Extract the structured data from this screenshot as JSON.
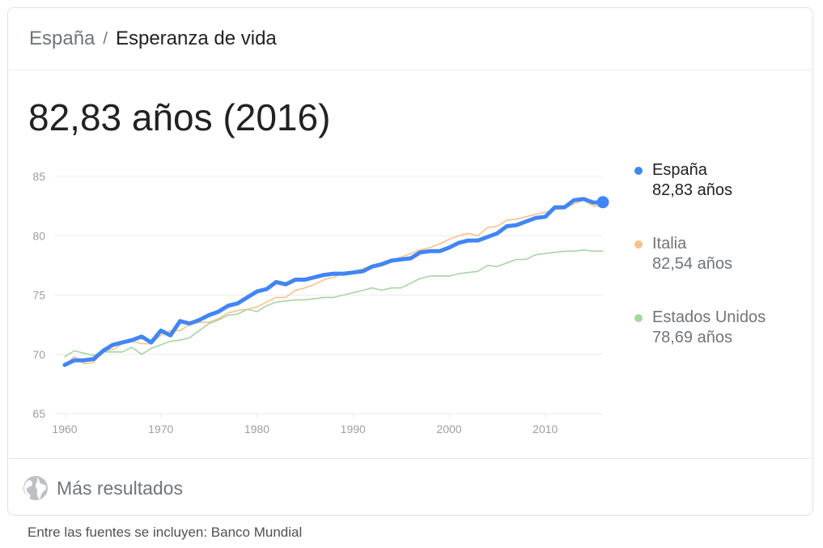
{
  "header": {
    "root": "España",
    "separator": "/",
    "current": "Esperanza de vida"
  },
  "headline": "82,83 años (2016)",
  "legend": [
    {
      "name": "España",
      "value": "82,83 años",
      "color": "#4285f4"
    },
    {
      "name": "Italia",
      "value": "82,54 años",
      "color": "#f6c28b"
    },
    {
      "name": "Estados Unidos",
      "value": "78,69 años",
      "color": "#a8d5a2"
    }
  ],
  "footer": {
    "more_label": "Más resultados",
    "icon": "globe-icon"
  },
  "source": "Entre las fuentes se incluyen: Banco Mundial",
  "chart_data": {
    "type": "line",
    "xlim": [
      1960,
      2016
    ],
    "ylim": [
      65,
      85
    ],
    "x_ticks": [
      1960,
      1970,
      1980,
      1990,
      2000,
      2010
    ],
    "y_ticks": [
      65,
      70,
      75,
      80,
      85
    ],
    "grid": true,
    "legend_position": "right",
    "x": [
      1960,
      1961,
      1962,
      1963,
      1964,
      1965,
      1966,
      1967,
      1968,
      1969,
      1970,
      1971,
      1972,
      1973,
      1974,
      1975,
      1976,
      1977,
      1978,
      1979,
      1980,
      1981,
      1982,
      1983,
      1984,
      1985,
      1986,
      1987,
      1988,
      1989,
      1990,
      1991,
      1992,
      1993,
      1994,
      1995,
      1996,
      1997,
      1998,
      1999,
      2000,
      2001,
      2002,
      2003,
      2004,
      2005,
      2006,
      2007,
      2008,
      2009,
      2010,
      2011,
      2012,
      2013,
      2014,
      2015,
      2016
    ],
    "series": [
      {
        "name": "Italia",
        "color": "#f6c28b",
        "values": [
          69.1,
          69.8,
          69.2,
          69.3,
          70.3,
          70.4,
          70.9,
          71.1,
          70.9,
          70.9,
          71.6,
          72.0,
          72.0,
          72.5,
          72.7,
          72.7,
          73.0,
          73.5,
          73.7,
          73.8,
          74.0,
          74.4,
          74.8,
          74.8,
          75.4,
          75.6,
          75.9,
          76.3,
          76.5,
          76.9,
          77.0,
          77.2,
          77.5,
          77.7,
          77.9,
          78.2,
          78.5,
          78.8,
          79.0,
          79.3,
          79.7,
          80.0,
          80.2,
          80.0,
          80.7,
          80.8,
          81.3,
          81.4,
          81.6,
          81.8,
          82.0,
          82.2,
          82.3,
          82.7,
          83.0,
          82.5,
          82.5
        ]
      },
      {
        "name": "Estados Unidos",
        "color": "#a8d5a2",
        "values": [
          69.8,
          70.3,
          70.1,
          69.9,
          70.2,
          70.2,
          70.2,
          70.6,
          70.0,
          70.5,
          70.8,
          71.1,
          71.2,
          71.4,
          72.0,
          72.6,
          72.9,
          73.3,
          73.4,
          73.8,
          73.6,
          74.1,
          74.4,
          74.5,
          74.6,
          74.6,
          74.7,
          74.8,
          74.8,
          75.0,
          75.2,
          75.4,
          75.6,
          75.4,
          75.6,
          75.6,
          76.0,
          76.4,
          76.6,
          76.6,
          76.6,
          76.8,
          76.9,
          77.0,
          77.5,
          77.4,
          77.7,
          78.0,
          78.0,
          78.4,
          78.5,
          78.6,
          78.7,
          78.7,
          78.8,
          78.7,
          78.7
        ]
      },
      {
        "name": "España",
        "color": "#4285f4",
        "values": [
          69.1,
          69.5,
          69.5,
          69.6,
          70.3,
          70.8,
          71.0,
          71.2,
          71.5,
          71.0,
          72.0,
          71.6,
          72.8,
          72.6,
          72.9,
          73.3,
          73.6,
          74.1,
          74.3,
          74.8,
          75.3,
          75.5,
          76.1,
          75.9,
          76.3,
          76.3,
          76.5,
          76.7,
          76.8,
          76.8,
          76.9,
          77.0,
          77.4,
          77.6,
          77.9,
          78.0,
          78.1,
          78.6,
          78.7,
          78.7,
          79.0,
          79.4,
          79.6,
          79.6,
          79.9,
          80.2,
          80.8,
          80.9,
          81.2,
          81.5,
          81.6,
          82.4,
          82.4,
          83.0,
          83.1,
          82.8,
          82.83
        ]
      }
    ]
  }
}
